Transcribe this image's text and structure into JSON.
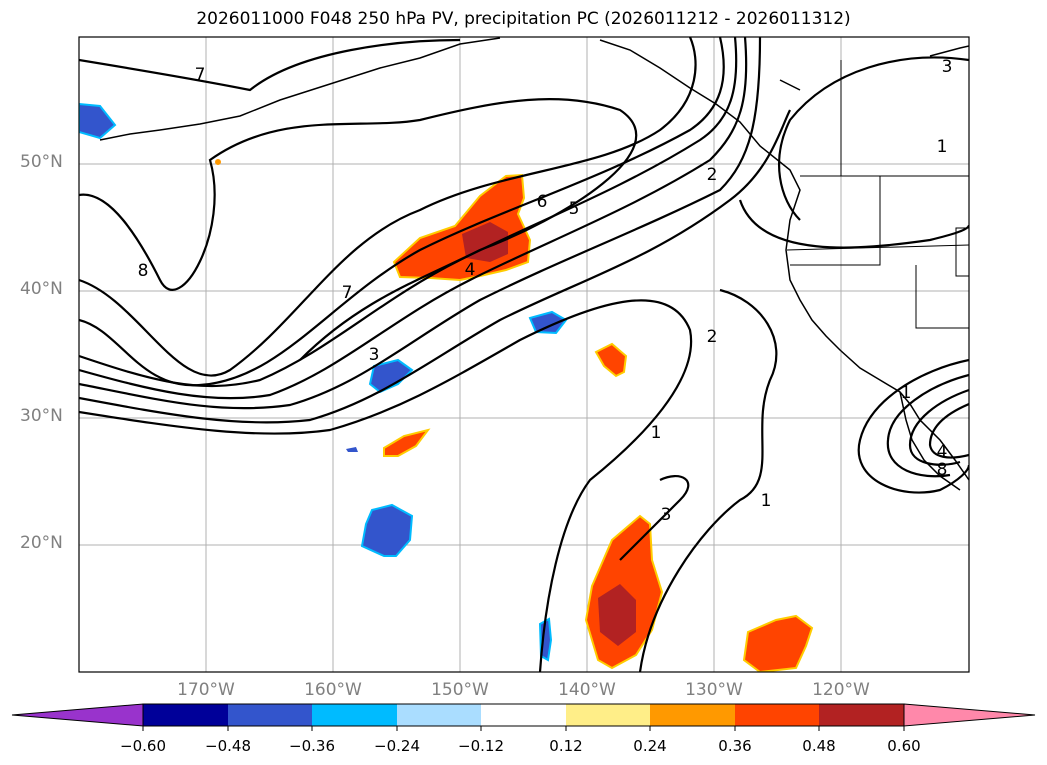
{
  "title": "2026011000 F048 250 hPa PV, precipitation PC (2026011212 - 2026011312)",
  "map": {
    "projection": "cylindrical",
    "lon_range": [
      -180,
      -110
    ],
    "lat_range": [
      10,
      60
    ],
    "grid": true,
    "lat_labels": [
      "20°N",
      "30°N",
      "40°N",
      "50°N"
    ],
    "lon_labels": [
      "170°W",
      "160°W",
      "150°W",
      "140°W",
      "130°W",
      "120°W"
    ],
    "contour_labels": [
      "7",
      "8",
      "7",
      "6",
      "5",
      "4",
      "3",
      "2",
      "1",
      "3",
      "2",
      "1",
      "1",
      "3",
      "1",
      "4",
      "8"
    ],
    "contour_color": "#000000"
  },
  "colorbar": {
    "ticks": [
      "−0.60",
      "−0.48",
      "−0.36",
      "−0.24",
      "−0.12",
      "0.12",
      "0.24",
      "0.36",
      "0.48",
      "0.60"
    ],
    "colors": [
      "#9933cc",
      "#000099",
      "#3355cc",
      "#00bbff",
      "#aaddff",
      "#ffffff",
      "#ffee88",
      "#ff9900",
      "#ff4400",
      "#b22222",
      "#ff88aa"
    ],
    "extend": "both"
  }
}
